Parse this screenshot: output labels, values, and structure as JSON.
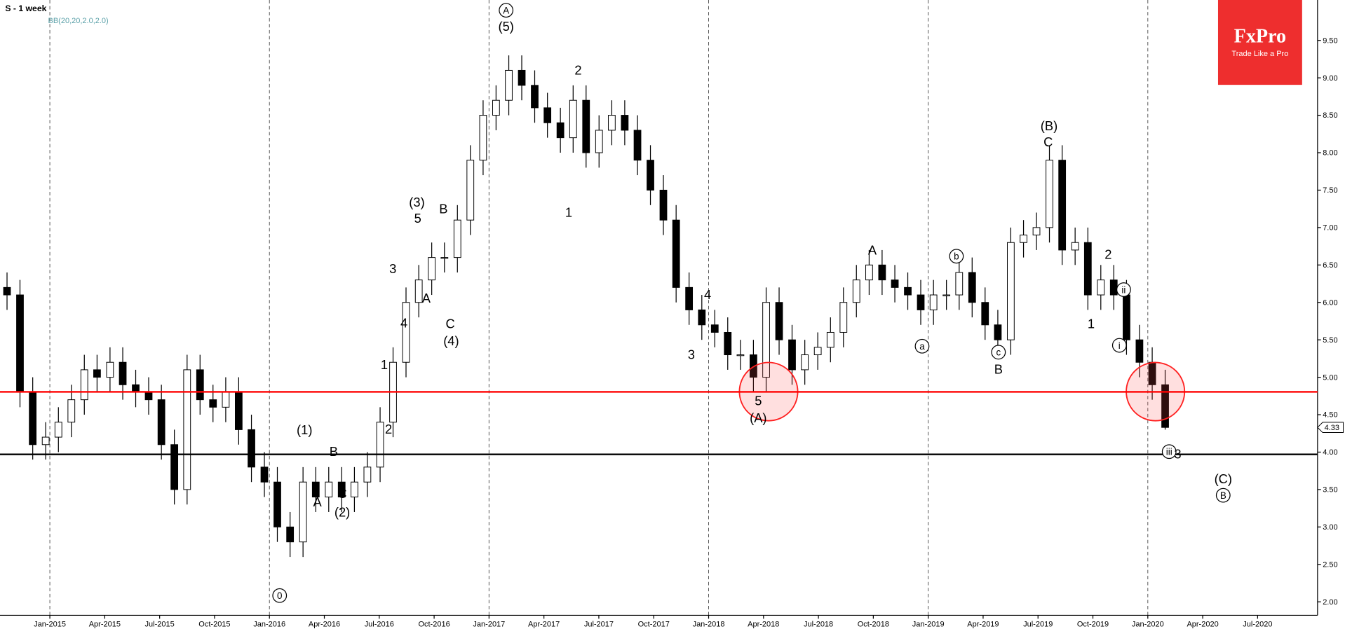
{
  "chart_data": {
    "type": "candlestick",
    "title": "S - 1 week",
    "subtitle": "BB(20,20,2.0,2.0)",
    "logo": {
      "name": "FxPro",
      "tagline": "Trade Like a Pro",
      "color": "#ee2e2e"
    },
    "xlim": [
      2014.773,
      2020.773
    ],
    "ylim": [
      1.82,
      10.04
    ],
    "xticks": [
      {
        "value": 2015.0,
        "label": "Jan-2015"
      },
      {
        "value": 2015.25,
        "label": "Apr-2015"
      },
      {
        "value": 2015.5,
        "label": "Jul-2015"
      },
      {
        "value": 2015.75,
        "label": "Oct-2015"
      },
      {
        "value": 2016.0,
        "label": "Jan-2016"
      },
      {
        "value": 2016.25,
        "label": "Apr-2016"
      },
      {
        "value": 2016.5,
        "label": "Jul-2016"
      },
      {
        "value": 2016.75,
        "label": "Oct-2016"
      },
      {
        "value": 2017.0,
        "label": "Jan-2017"
      },
      {
        "value": 2017.25,
        "label": "Apr-2017"
      },
      {
        "value": 2017.5,
        "label": "Jul-2017"
      },
      {
        "value": 2017.75,
        "label": "Oct-2017"
      },
      {
        "value": 2018.0,
        "label": "Jan-2018"
      },
      {
        "value": 2018.25,
        "label": "Apr-2018"
      },
      {
        "value": 2018.5,
        "label": "Jul-2018"
      },
      {
        "value": 2018.75,
        "label": "Oct-2018"
      },
      {
        "value": 2019.0,
        "label": "Jan-2019"
      },
      {
        "value": 2019.25,
        "label": "Apr-2019"
      },
      {
        "value": 2019.5,
        "label": "Jul-2019"
      },
      {
        "value": 2019.75,
        "label": "Oct-2019"
      },
      {
        "value": 2020.0,
        "label": "Jan-2020"
      },
      {
        "value": 2020.25,
        "label": "Apr-2020"
      },
      {
        "value": 2020.5,
        "label": "Jul-2020"
      }
    ],
    "yticks": [
      {
        "value": 2.0,
        "label": "2.00"
      },
      {
        "value": 2.5,
        "label": "2.50"
      },
      {
        "value": 3.0,
        "label": "3.00"
      },
      {
        "value": 3.5,
        "label": "3.50"
      },
      {
        "value": 4.0,
        "label": "4.00"
      },
      {
        "value": 4.5,
        "label": "4.50"
      },
      {
        "value": 5.0,
        "label": "5.00"
      },
      {
        "value": 5.5,
        "label": "5.50"
      },
      {
        "value": 6.0,
        "label": "6.00"
      },
      {
        "value": 6.5,
        "label": "6.50"
      },
      {
        "value": 7.0,
        "label": "7.00"
      },
      {
        "value": 7.5,
        "label": "7.50"
      },
      {
        "value": 8.0,
        "label": "8.00"
      },
      {
        "value": 8.5,
        "label": "8.50"
      },
      {
        "value": 9.0,
        "label": "9.00"
      },
      {
        "value": 9.5,
        "label": "9.50"
      }
    ],
    "hlines": [
      {
        "value": 4.805,
        "color": "#ff0000"
      },
      {
        "value": 3.97,
        "color": "#000000"
      }
    ],
    "series": [
      {
        "name": "S",
        "up_color": "#ffffff",
        "down_color": "#000000",
        "x": [
          2014.805,
          2014.864,
          2014.922,
          2014.981,
          2015.039,
          2015.098,
          2015.157,
          2015.215,
          2015.274,
          2015.332,
          2015.391,
          2015.45,
          2015.508,
          2015.567,
          2015.625,
          2015.684,
          2015.743,
          2015.801,
          2015.86,
          2015.918,
          2015.977,
          2016.036,
          2016.094,
          2016.153,
          2016.211,
          2016.27,
          2016.329,
          2016.387,
          2016.446,
          2016.504,
          2016.563,
          2016.622,
          2016.68,
          2016.739,
          2016.797,
          2016.856,
          2016.915,
          2016.973,
          2017.032,
          2017.09,
          2017.149,
          2017.208,
          2017.266,
          2017.325,
          2017.383,
          2017.442,
          2017.501,
          2017.559,
          2017.618,
          2017.676,
          2017.735,
          2017.794,
          2017.852,
          2017.911,
          2017.969,
          2018.028,
          2018.087,
          2018.145,
          2018.204,
          2018.262,
          2018.321,
          2018.38,
          2018.438,
          2018.497,
          2018.555,
          2018.614,
          2018.673,
          2018.731,
          2018.79,
          2018.848,
          2018.907,
          2018.966,
          2019.024,
          2019.083,
          2019.141,
          2019.2,
          2019.259,
          2019.317,
          2019.376,
          2019.434,
          2019.493,
          2019.552,
          2019.61,
          2019.669,
          2019.727,
          2019.786,
          2019.845,
          2019.903,
          2019.962,
          2020.02,
          2020.079
        ],
        "open": [
          6.2,
          6.1,
          4.8,
          4.1,
          4.2,
          4.4,
          4.7,
          5.1,
          5.0,
          5.2,
          4.9,
          4.8,
          4.7,
          4.1,
          3.5,
          5.1,
          4.7,
          4.6,
          4.8,
          4.3,
          3.8,
          3.6,
          3.0,
          2.8,
          3.6,
          3.4,
          3.6,
          3.4,
          3.6,
          3.8,
          4.4,
          5.2,
          6.0,
          6.3,
          6.6,
          6.6,
          7.1,
          7.9,
          8.5,
          8.7,
          9.1,
          8.9,
          8.6,
          8.4,
          8.2,
          8.7,
          8.0,
          8.3,
          8.5,
          8.3,
          7.9,
          7.5,
          7.1,
          6.2,
          5.9,
          5.7,
          5.6,
          5.3,
          5.3,
          5.0,
          6.0,
          5.5,
          5.1,
          5.3,
          5.4,
          5.6,
          6.0,
          6.3,
          6.5,
          6.3,
          6.2,
          6.1,
          5.9,
          6.1,
          6.1,
          6.4,
          6.0,
          5.7,
          5.5,
          6.8,
          6.9,
          7.0,
          7.9,
          6.7,
          6.8,
          6.1,
          6.3,
          6.1,
          5.5,
          5.2,
          4.9
        ],
        "high": [
          6.4,
          6.3,
          5.0,
          4.4,
          4.6,
          4.9,
          5.3,
          5.3,
          5.4,
          5.4,
          5.1,
          5.0,
          4.9,
          4.3,
          5.3,
          5.3,
          4.9,
          5.0,
          5.0,
          4.5,
          4.0,
          3.8,
          3.2,
          3.8,
          3.8,
          3.8,
          3.8,
          3.8,
          4.0,
          4.6,
          5.4,
          6.2,
          6.5,
          6.8,
          6.8,
          7.3,
          8.1,
          8.7,
          8.9,
          9.3,
          9.3,
          9.1,
          8.8,
          8.6,
          8.9,
          8.9,
          8.5,
          8.7,
          8.7,
          8.5,
          8.1,
          7.7,
          7.3,
          6.4,
          6.1,
          5.9,
          5.8,
          5.5,
          5.5,
          6.2,
          6.2,
          5.7,
          5.5,
          5.6,
          5.8,
          6.2,
          6.5,
          6.7,
          6.7,
          6.5,
          6.4,
          6.3,
          6.3,
          6.3,
          6.6,
          6.6,
          6.2,
          5.9,
          7.0,
          7.1,
          7.2,
          8.1,
          8.1,
          7.0,
          7.0,
          6.5,
          6.5,
          6.3,
          5.7,
          5.4,
          5.1
        ],
        "low": [
          5.9,
          4.6,
          3.9,
          3.9,
          4.0,
          4.2,
          4.5,
          4.8,
          4.8,
          4.7,
          4.6,
          4.5,
          3.9,
          3.3,
          3.3,
          4.5,
          4.4,
          4.4,
          4.1,
          3.6,
          3.4,
          2.8,
          2.6,
          2.6,
          3.2,
          3.2,
          3.2,
          3.2,
          3.4,
          3.6,
          4.2,
          5.0,
          5.8,
          6.1,
          6.4,
          6.4,
          6.9,
          7.7,
          8.3,
          8.5,
          8.7,
          8.4,
          8.2,
          8.0,
          8.0,
          7.8,
          7.8,
          8.1,
          8.1,
          7.7,
          7.3,
          6.9,
          6.0,
          5.7,
          5.5,
          5.4,
          5.1,
          5.1,
          4.8,
          4.8,
          5.3,
          4.9,
          4.9,
          5.1,
          5.2,
          5.4,
          5.8,
          6.1,
          6.1,
          6.0,
          5.9,
          5.7,
          5.7,
          5.9,
          5.9,
          5.8,
          5.5,
          5.3,
          5.3,
          6.6,
          6.7,
          6.8,
          6.5,
          6.5,
          5.9,
          5.9,
          5.9,
          5.3,
          5.0,
          4.7,
          4.3
        ],
        "close": [
          6.1,
          4.8,
          4.1,
          4.2,
          4.4,
          4.7,
          5.1,
          5.0,
          5.2,
          4.9,
          4.8,
          4.7,
          4.1,
          3.5,
          5.1,
          4.7,
          4.6,
          4.8,
          4.3,
          3.8,
          3.6,
          3.0,
          2.8,
          3.6,
          3.4,
          3.6,
          3.4,
          3.6,
          3.8,
          4.4,
          5.2,
          6.0,
          6.3,
          6.6,
          6.6,
          7.1,
          7.9,
          8.5,
          8.7,
          9.1,
          8.9,
          8.6,
          8.4,
          8.2,
          8.7,
          8.0,
          8.3,
          8.5,
          8.3,
          7.9,
          7.5,
          7.1,
          6.2,
          5.9,
          5.7,
          5.6,
          5.3,
          5.3,
          5.0,
          6.0,
          5.5,
          5.1,
          5.3,
          5.4,
          5.6,
          6.0,
          6.3,
          6.5,
          6.3,
          6.2,
          6.1,
          5.9,
          6.1,
          6.1,
          6.4,
          6.0,
          5.7,
          5.5,
          6.8,
          6.9,
          7.0,
          7.9,
          6.7,
          6.8,
          6.1,
          6.3,
          6.1,
          5.5,
          5.2,
          4.9,
          4.33
        ]
      }
    ],
    "annotations": [
      {
        "text": "A",
        "circled": true
      },
      {
        "text": "(5)"
      },
      {
        "text": "2"
      },
      {
        "text": "1"
      },
      {
        "text": "(3)"
      },
      {
        "text": "5"
      },
      {
        "text": "B"
      },
      {
        "text": "3"
      },
      {
        "text": "4"
      },
      {
        "text": "A"
      },
      {
        "text": "C"
      },
      {
        "text": "(4)"
      },
      {
        "text": "1"
      },
      {
        "text": "2"
      },
      {
        "text": "(1)"
      },
      {
        "text": "B"
      },
      {
        "text": "A"
      },
      {
        "text": "C"
      },
      {
        "text": "(2)"
      },
      {
        "text": "0",
        "circled": true
      },
      {
        "text": "4"
      },
      {
        "text": "3"
      },
      {
        "text": "5"
      },
      {
        "text": "(A)"
      },
      {
        "text": "A"
      },
      {
        "text": "a",
        "circled": true
      },
      {
        "text": "b",
        "circled": true
      },
      {
        "text": "c",
        "circled": true
      },
      {
        "text": "B"
      },
      {
        "text": "(B)"
      },
      {
        "text": "C"
      },
      {
        "text": "2"
      },
      {
        "text": "1"
      },
      {
        "text": "ii",
        "circled": true
      },
      {
        "text": "i",
        "circled": true
      },
      {
        "text": "iii",
        "circled": true
      },
      {
        "text": "3"
      },
      {
        "text": "(C)"
      },
      {
        "text": "B",
        "circled": true
      }
    ]
  }
}
